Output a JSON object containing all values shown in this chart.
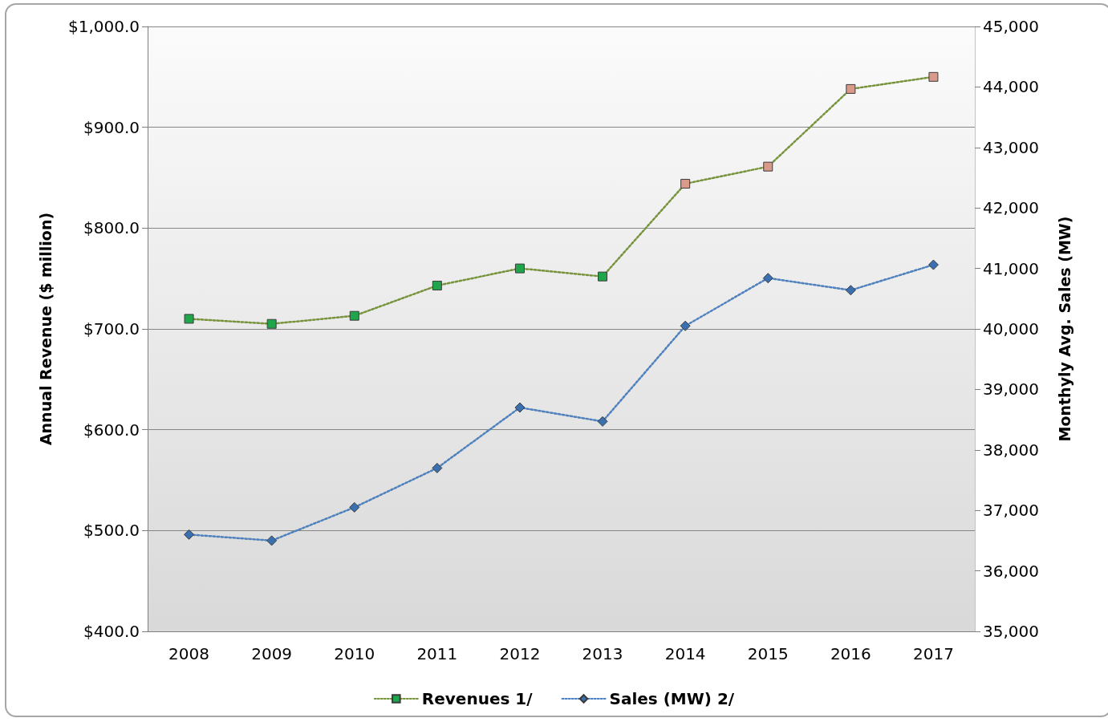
{
  "chart_data": {
    "type": "line",
    "categories": [
      "2008",
      "2009",
      "2010",
      "2011",
      "2012",
      "2013",
      "2014",
      "2015",
      "2016",
      "2017"
    ],
    "ylabel": "Annual Revenue ($ million)",
    "y2label": "Monthyly Avg. Sales (MW)",
    "series": [
      {
        "name": "Revenues 1/",
        "color": "#77933c",
        "marker": "square",
        "colors": [
          "#1fa64a",
          "#1fa64a",
          "#1fa64a",
          "#1fa64a",
          "#1fa64a",
          "#1fa64a",
          "#d99a8a",
          "#d99a8a",
          "#d99a8a",
          "#d99a8a"
        ],
        "values": [
          710,
          705,
          713,
          743,
          760,
          752,
          844,
          861,
          938,
          950
        ]
      },
      {
        "name": "Sales (MW) 2/",
        "color": "#4f81bd",
        "marker": "diamond",
        "axis": "y2",
        "colors": [
          "#3a6fb0",
          "#3a6fb0",
          "#3a6fb0",
          "#3a6fb0",
          "#3a6fb0",
          "#3a6fb0",
          "#3a6fb0",
          "#3a6fb0",
          "#3a6fb0",
          "#3a6fb0"
        ],
        "values": [
          36600,
          36500,
          37050,
          37700,
          38700,
          38470,
          40050,
          40840,
          40640,
          41060
        ]
      }
    ],
    "ylim": [
      400,
      1000
    ],
    "yticks": [
      {
        "value": 400,
        "label": "$400.0"
      },
      {
        "value": 500,
        "label": "$500.0"
      },
      {
        "value": 600,
        "label": "$600.0"
      },
      {
        "value": 700,
        "label": "$700.0"
      },
      {
        "value": 800,
        "label": "$800.0"
      },
      {
        "value": 900,
        "label": "$900.0"
      },
      {
        "value": 1000,
        "label": "$1,000.0"
      }
    ],
    "y2lim": [
      35000,
      45000
    ],
    "y2ticks": [
      {
        "value": 35000,
        "label": "35,000"
      },
      {
        "value": 36000,
        "label": "36,000"
      },
      {
        "value": 37000,
        "label": "37,000"
      },
      {
        "value": 38000,
        "label": "38,000"
      },
      {
        "value": 39000,
        "label": "39,000"
      },
      {
        "value": 40000,
        "label": "40,000"
      },
      {
        "value": 41000,
        "label": "41,000"
      },
      {
        "value": 42000,
        "label": "42,000"
      },
      {
        "value": 43000,
        "label": "43,000"
      },
      {
        "value": 44000,
        "label": "44,000"
      },
      {
        "value": 45000,
        "label": "45,000"
      }
    ],
    "grid": "y",
    "legend": "bottom",
    "line_style": "dotted"
  }
}
